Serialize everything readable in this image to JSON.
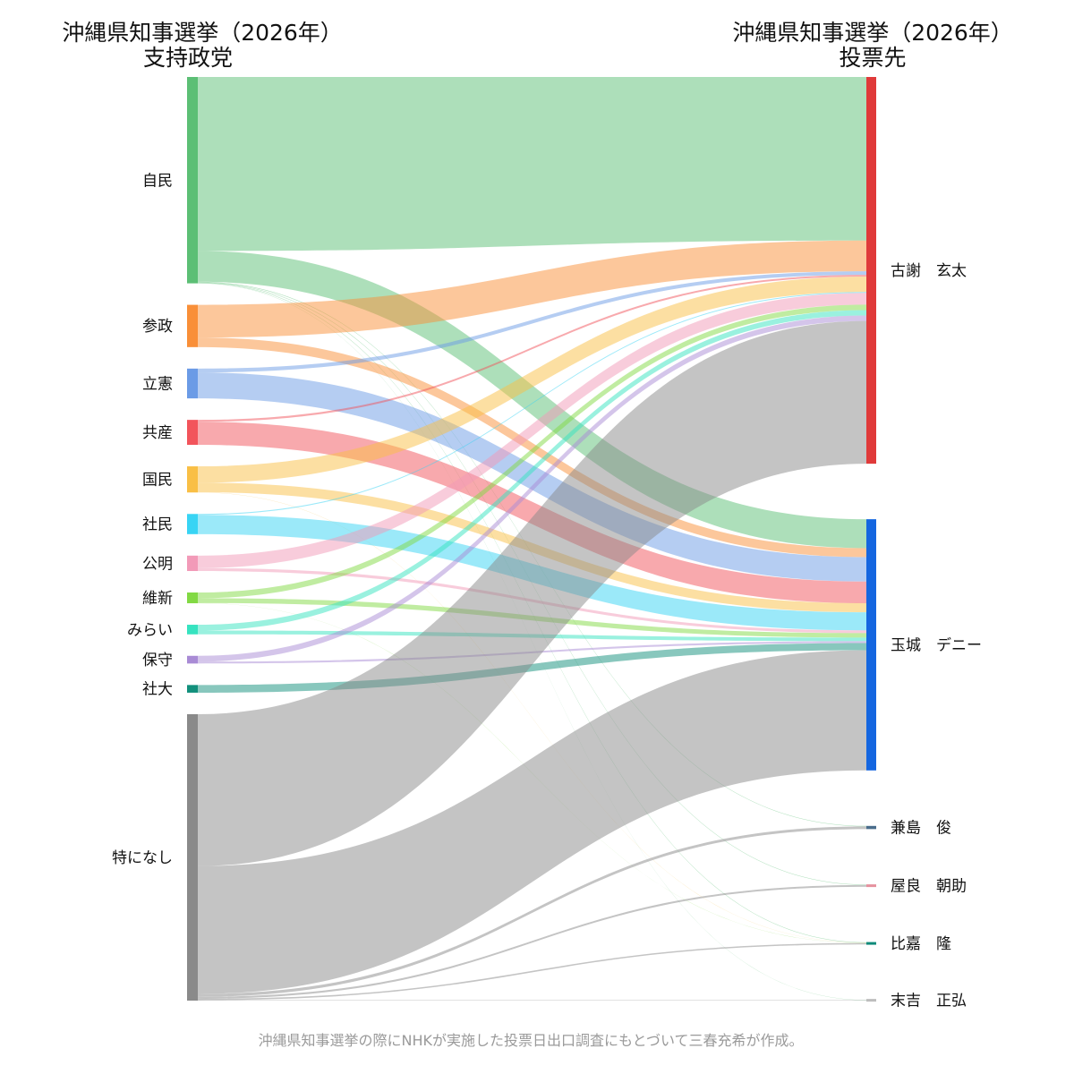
{
  "chart_data": {
    "type": "sankey",
    "left_title": [
      "沖縄県知事選挙（2026年）",
      "支持政党"
    ],
    "right_title": [
      "沖縄県知事選挙（2026年）",
      "投票先"
    ],
    "footnote": "沖縄県知事選挙の際にNHKが実施した投票日出口調査にもとづいて三春充希が作成。",
    "sources": [
      {
        "label": "自民",
        "color": "#5cbf75"
      },
      {
        "label": "参政",
        "color": "#f98f38"
      },
      {
        "label": "立憲",
        "color": "#6b9be6"
      },
      {
        "label": "共産",
        "color": "#f2545b"
      },
      {
        "label": "国民",
        "color": "#f9bf45"
      },
      {
        "label": "社民",
        "color": "#38d4f4"
      },
      {
        "label": "公明",
        "color": "#f29ab8"
      },
      {
        "label": "維新",
        "color": "#82d944"
      },
      {
        "label": "みらい",
        "color": "#36e3c0"
      },
      {
        "label": "保守",
        "color": "#a98bd5"
      },
      {
        "label": "社大",
        "color": "#12907c"
      },
      {
        "label": "特になし",
        "color": "#8a8a8a"
      }
    ],
    "targets": [
      {
        "label": "古謝　玄太",
        "color": "#e03a3a"
      },
      {
        "label": "玉城　デニー",
        "color": "#1466e0"
      },
      {
        "label": "兼島　俊",
        "color": "#4a6d8c"
      },
      {
        "label": "屋良　朝助",
        "color": "#e6919e"
      },
      {
        "label": "比嘉　隆",
        "color": "#0f8a7a"
      },
      {
        "label": "末吉　正弘",
        "color": "#bdbdbd"
      }
    ],
    "flows": [
      [
        181,
        32,
        0.5,
        0.5,
        0.5,
        0.2
      ],
      [
        34,
        10,
        0,
        0,
        0,
        0
      ],
      [
        4,
        27,
        0,
        0,
        0,
        0
      ],
      [
        2,
        24,
        0,
        0,
        0,
        0
      ],
      [
        17,
        10,
        0,
        0,
        0.2,
        0
      ],
      [
        1,
        20,
        0,
        0,
        0,
        0
      ],
      [
        13,
        3,
        0,
        0,
        0,
        0
      ],
      [
        6,
        5,
        0,
        0,
        0.2,
        0
      ],
      [
        6,
        4,
        0,
        0,
        0,
        0
      ],
      [
        6,
        2,
        0,
        0,
        0,
        0
      ],
      [
        0,
        8,
        0,
        0,
        0,
        0
      ],
      [
        158,
        133,
        3,
        2,
        1.5,
        0.5
      ]
    ]
  }
}
